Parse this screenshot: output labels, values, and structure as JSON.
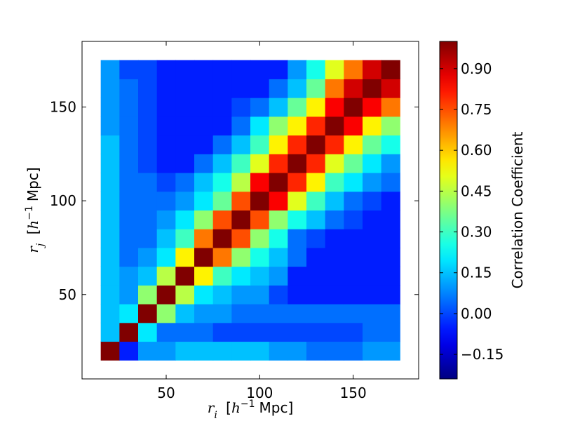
{
  "chart_data": {
    "type": "heatmap",
    "title": "",
    "xlabel": {
      "var": "r",
      "sub": "i",
      "unit_pre": "[h",
      "unit_exp": "−1",
      "unit_post": "Mpc]"
    },
    "ylabel": {
      "var": "r",
      "sub": "j",
      "unit_pre": "[h",
      "unit_exp": "−1",
      "unit_post": "Mpc]"
    },
    "x_ticks": [
      {
        "value": 50,
        "label": "50"
      },
      {
        "value": 100,
        "label": "100"
      },
      {
        "value": 150,
        "label": "150"
      }
    ],
    "y_ticks": [
      {
        "value": 50,
        "label": "50"
      },
      {
        "value": 100,
        "label": "100"
      },
      {
        "value": 150,
        "label": "150"
      }
    ],
    "x_range": [
      5,
      185
    ],
    "y_range": [
      5,
      185
    ],
    "bins": {
      "start": 15,
      "width": 10,
      "count": 16
    },
    "rows_order": "bottom_to_top",
    "values": [
      [
        1.0,
        -0.05,
        0.1,
        0.1,
        0.15,
        0.15,
        0.15,
        0.15,
        0.15,
        0.1,
        0.1,
        0.05,
        0.05,
        0.05,
        0.1,
        0.1
      ],
      [
        0.15,
        1.0,
        0.2,
        0.05,
        0.05,
        0.05,
        0.0,
        0.0,
        0.0,
        0.0,
        0.0,
        0.0,
        0.0,
        0.0,
        0.05,
        0.05
      ],
      [
        0.15,
        0.2,
        1.0,
        0.4,
        0.15,
        0.1,
        0.1,
        0.05,
        0.05,
        0.05,
        0.05,
        0.05,
        0.05,
        0.05,
        0.05,
        0.05
      ],
      [
        0.15,
        0.1,
        0.4,
        1.0,
        0.45,
        0.2,
        0.15,
        0.1,
        0.1,
        0.0,
        -0.05,
        -0.05,
        -0.05,
        -0.05,
        -0.05,
        -0.05
      ],
      [
        0.15,
        0.1,
        0.15,
        0.45,
        1.0,
        0.55,
        0.3,
        0.2,
        0.15,
        0.1,
        -0.05,
        -0.05,
        -0.05,
        -0.05,
        -0.05,
        -0.05
      ],
      [
        0.15,
        0.05,
        0.1,
        0.2,
        0.55,
        1.0,
        0.7,
        0.4,
        0.25,
        0.15,
        0.05,
        -0.05,
        -0.05,
        -0.05,
        -0.05,
        -0.05
      ],
      [
        0.15,
        0.05,
        0.05,
        0.15,
        0.3,
        0.7,
        1.0,
        0.75,
        0.4,
        0.25,
        0.05,
        0.0,
        -0.05,
        -0.05,
        -0.05,
        -0.05
      ],
      [
        0.15,
        0.05,
        0.05,
        0.1,
        0.2,
        0.4,
        0.75,
        1.0,
        0.75,
        0.4,
        0.25,
        0.15,
        0.05,
        0.0,
        -0.05,
        -0.05
      ],
      [
        0.15,
        0.05,
        0.05,
        0.05,
        0.1,
        0.2,
        0.35,
        0.75,
        1.0,
        0.85,
        0.5,
        0.3,
        0.15,
        0.05,
        0.0,
        -0.05
      ],
      [
        0.15,
        0.05,
        0.05,
        0.0,
        0.05,
        0.15,
        0.25,
        0.45,
        0.85,
        1.0,
        0.8,
        0.55,
        0.3,
        0.2,
        0.1,
        0.05
      ],
      [
        0.15,
        0.05,
        0.0,
        -0.05,
        -0.05,
        0.05,
        0.15,
        0.3,
        0.5,
        0.8,
        1.0,
        0.8,
        0.5,
        0.35,
        0.2,
        0.1
      ],
      [
        0.15,
        0.05,
        0.0,
        -0.05,
        -0.05,
        -0.05,
        0.05,
        0.15,
        0.3,
        0.55,
        0.8,
        1.0,
        0.8,
        0.55,
        0.35,
        0.25
      ],
      [
        0.1,
        0.05,
        0.0,
        -0.05,
        -0.05,
        -0.05,
        -0.05,
        0.05,
        0.2,
        0.4,
        0.55,
        0.8,
        1.0,
        0.85,
        0.55,
        0.4
      ],
      [
        0.1,
        0.05,
        0.0,
        -0.05,
        -0.05,
        -0.05,
        -0.05,
        0.0,
        0.05,
        0.15,
        0.35,
        0.55,
        0.85,
        1.0,
        0.85,
        0.7
      ],
      [
        0.1,
        0.05,
        0.0,
        -0.05,
        -0.05,
        -0.05,
        -0.05,
        -0.05,
        -0.05,
        0.05,
        0.15,
        0.35,
        0.7,
        0.9,
        1.0,
        0.9
      ],
      [
        0.1,
        0.0,
        0.0,
        -0.05,
        -0.05,
        -0.05,
        -0.05,
        -0.05,
        -0.05,
        -0.05,
        0.1,
        0.25,
        0.5,
        0.7,
        0.9,
        1.0
      ]
    ],
    "colorbar": {
      "label": "Correlation Coefficient",
      "colormap": "jet",
      "vmin": -0.24,
      "vmax": 1.0,
      "ticks": [
        {
          "value": -0.15,
          "label": "−0.15"
        },
        {
          "value": 0.0,
          "label": "0.00"
        },
        {
          "value": 0.15,
          "label": "0.15"
        },
        {
          "value": 0.3,
          "label": "0.30"
        },
        {
          "value": 0.45,
          "label": "0.45"
        },
        {
          "value": 0.6,
          "label": "0.60"
        },
        {
          "value": 0.75,
          "label": "0.75"
        },
        {
          "value": 0.9,
          "label": "0.90"
        }
      ]
    },
    "grid": false,
    "legend": "none"
  }
}
